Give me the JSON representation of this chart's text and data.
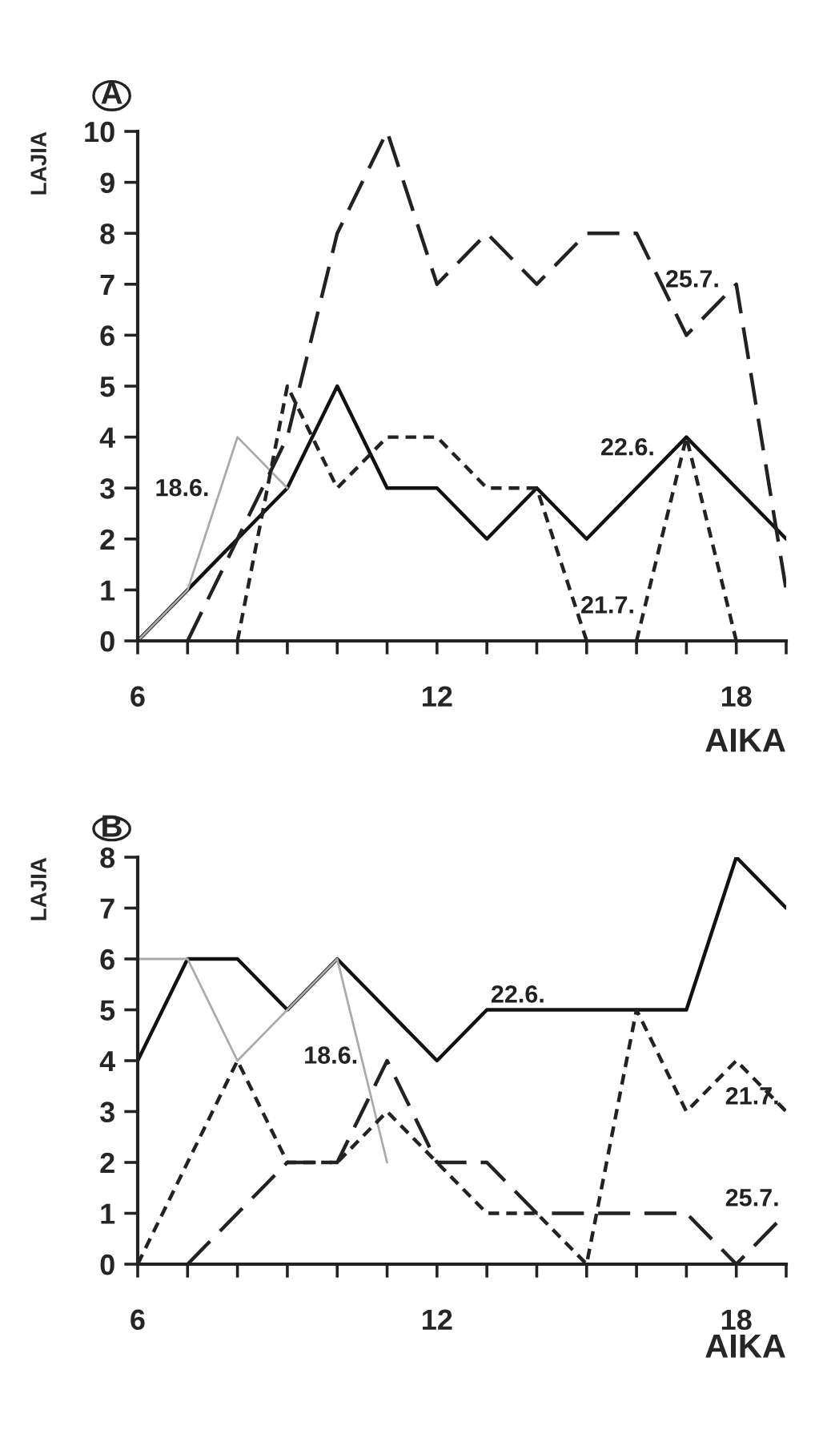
{
  "chart_data": [
    {
      "type": "line",
      "title": "A",
      "xlabel": "AIKA",
      "ylabel": "LAJIA",
      "xlim": [
        6,
        19
      ],
      "ylim": [
        0,
        10
      ],
      "xticks": [
        6,
        {
          "value": 7,
          "label": null
        },
        {
          "value": 8,
          "label": null
        },
        {
          "value": 9,
          "label": null
        },
        {
          "value": 10,
          "label": null
        },
        {
          "value": 11,
          "label": null
        },
        12,
        {
          "value": 13,
          "label": null
        },
        {
          "value": 14,
          "label": null
        },
        {
          "value": 15,
          "label": null
        },
        {
          "value": 16,
          "label": null
        },
        {
          "value": 17,
          "label": null
        },
        18,
        {
          "value": 19,
          "label": null
        }
      ],
      "yticks": [
        0,
        1,
        2,
        3,
        4,
        5,
        6,
        7,
        8,
        9,
        10
      ],
      "grid": false,
      "legend": false,
      "marker": "none",
      "series": [
        {
          "color": "#111111",
          "line_style": "solid",
          "x": [
            6,
            7,
            8,
            9,
            10,
            11,
            12,
            13,
            14,
            15,
            16,
            17,
            18,
            19
          ],
          "values": [
            0,
            1,
            2,
            3,
            5,
            3,
            3,
            2,
            3,
            2,
            3,
            4,
            3,
            2
          ]
        },
        {
          "color": "#aaaaaa",
          "line_style": "solid",
          "x": [
            6,
            7,
            8,
            9
          ],
          "values": [
            0,
            1,
            4,
            3
          ]
        },
        {
          "color": "#222222",
          "line_style": "dotted",
          "x": [
            8,
            9,
            10,
            11,
            12,
            13,
            14,
            15
          ],
          "values": [
            0,
            5,
            3,
            4,
            4,
            3,
            3,
            0
          ]
        },
        {
          "color": "#222222",
          "line_style": "dotted",
          "x": [
            16,
            17,
            18
          ],
          "values": [
            0,
            4,
            0
          ]
        },
        {
          "color": "#222222",
          "line_style": "dashed",
          "x": [
            7,
            8,
            9,
            10,
            11,
            12,
            13,
            14,
            15,
            16,
            17,
            18,
            19
          ],
          "values": [
            0,
            2,
            4,
            8,
            10,
            7,
            8,
            7,
            8,
            8,
            6,
            7,
            1
          ]
        }
      ],
      "annotations": [
        {
          "text": "18.6.",
          "x": 7.57,
          "y": 2.7
        },
        {
          "text": "22.6.",
          "x": 16.5,
          "y": 3.5
        },
        {
          "text": "21.7.",
          "x": 16.1,
          "y": 0.4
        },
        {
          "text": "25.7.",
          "x": 17.8,
          "y": 6.8
        }
      ]
    },
    {
      "type": "line",
      "title": "B",
      "xlabel": "AIKA",
      "ylabel": "LAJIA",
      "xlim": [
        6,
        19
      ],
      "ylim": [
        0,
        8
      ],
      "xticks": [
        6,
        {
          "value": 7,
          "label": null
        },
        {
          "value": 8,
          "label": null
        },
        {
          "value": 9,
          "label": null
        },
        {
          "value": 10,
          "label": null
        },
        {
          "value": 11,
          "label": null
        },
        12,
        {
          "value": 13,
          "label": null
        },
        {
          "value": 14,
          "label": null
        },
        {
          "value": 15,
          "label": null
        },
        {
          "value": 16,
          "label": null
        },
        {
          "value": 17,
          "label": null
        },
        18,
        {
          "value": 19,
          "label": null
        }
      ],
      "yticks": [
        0,
        1,
        2,
        3,
        4,
        5,
        6,
        7,
        8
      ],
      "grid": false,
      "legend": false,
      "marker": "none",
      "series": [
        {
          "color": "#111111",
          "line_style": "solid",
          "x": [
            6,
            7,
            8,
            9,
            10,
            11,
            12,
            13,
            14,
            15,
            16,
            17,
            18,
            19
          ],
          "values": [
            4,
            6,
            6,
            5,
            6,
            5,
            4,
            5,
            5,
            5,
            5,
            5,
            8,
            7
          ]
        },
        {
          "color": "#aaaaaa",
          "line_style": "solid",
          "x": [
            6,
            7,
            8,
            9,
            10,
            11
          ],
          "values": [
            6,
            6,
            4,
            5,
            6,
            2
          ]
        },
        {
          "color": "#222222",
          "line_style": "dotted",
          "x": [
            6,
            7,
            8,
            9,
            10,
            11,
            12,
            13,
            14,
            15,
            16,
            17,
            18,
            19
          ],
          "values": [
            0,
            2,
            4,
            2,
            2,
            3,
            2,
            1,
            1,
            0,
            5,
            3,
            4,
            3
          ]
        },
        {
          "color": "#222222",
          "line_style": "dashed",
          "x": [
            7,
            8,
            9,
            10,
            11,
            12,
            13,
            14,
            15,
            16,
            17,
            18,
            19
          ],
          "values": [
            0,
            1,
            2,
            2,
            4,
            2,
            2,
            1,
            1,
            1,
            1,
            0,
            1
          ]
        }
      ],
      "annotations": [
        {
          "text": "22.6.",
          "x": 14.3,
          "y": 5
        },
        {
          "text": "18.6.",
          "x": 10.55,
          "y": 3.8
        },
        {
          "text": "21.7.",
          "x": 19,
          "y": 3
        },
        {
          "text": "25.7.",
          "x": 19,
          "y": 1
        }
      ]
    }
  ]
}
